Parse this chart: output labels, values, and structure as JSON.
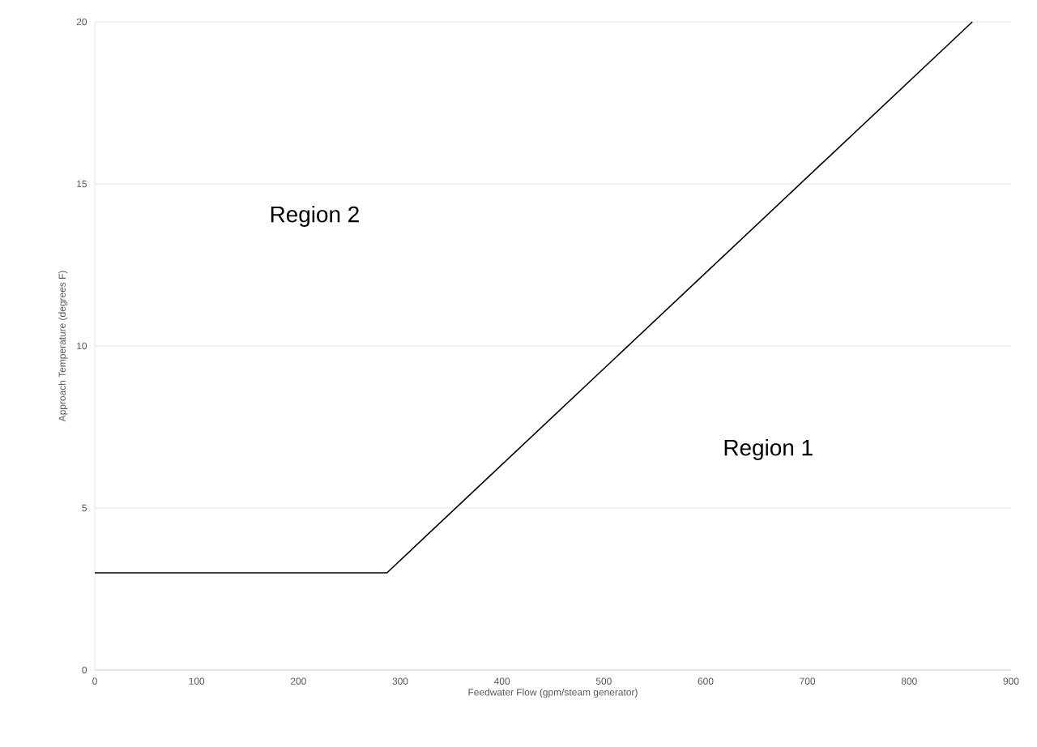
{
  "chart_data": {
    "type": "line",
    "xlabel": "Feedwater Flow (gpm/steam generator)",
    "ylabel": "Approach Temperature (degrees F)",
    "x": [
      0,
      287,
      862
    ],
    "series": [
      {
        "color": "#000000",
        "values": [
          3,
          3,
          20
        ]
      }
    ],
    "xlim": [
      0,
      900
    ],
    "ylim": [
      0,
      20
    ],
    "xticks": [
      0,
      100,
      200,
      300,
      400,
      500,
      600,
      700,
      800,
      900
    ],
    "yticks": [
      0,
      5,
      10,
      15,
      20
    ],
    "grid": "y",
    "marker": "none",
    "line_style": "solid",
    "annotations": [
      "Region 2",
      "Region 1"
    ]
  }
}
